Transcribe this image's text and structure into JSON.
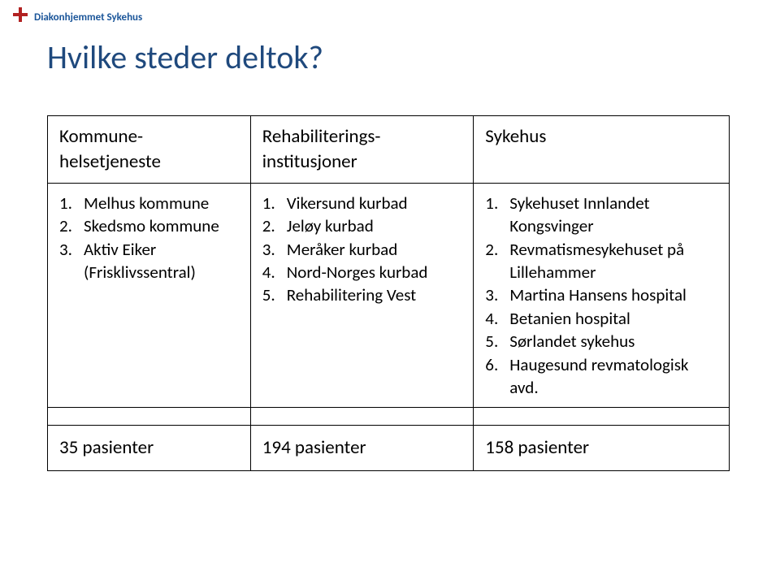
{
  "logo": {
    "brand": "Diakonhjemmet Sykehus"
  },
  "title": "Hvilke steder deltok?",
  "table": {
    "headers": {
      "col1": "Kommune-helsetjeneste",
      "col2": "Rehabiliterings-institusjoner",
      "col3": "Sykehus"
    },
    "col1_items": [
      "Melhus kommune",
      "Skedsmo kommune",
      "Aktiv Eiker (Frisklivssentral)"
    ],
    "col2_items": [
      "Vikersund kurbad",
      "Jeløy kurbad",
      "Meråker kurbad",
      "Nord-Norges kurbad",
      "Rehabilitering Vest"
    ],
    "col3_items": [
      "Sykehuset Innlandet Kongsvinger",
      "Revmatismesykehuset på Lillehammer",
      "Martina Hansens hospital",
      "Betanien hospital",
      "Sørlandet sykehus",
      "Haugesund revmatologisk avd."
    ],
    "footers": {
      "col1": "35 pasienter",
      "col2": "194 pasienter",
      "col3": "158 pasienter"
    }
  }
}
